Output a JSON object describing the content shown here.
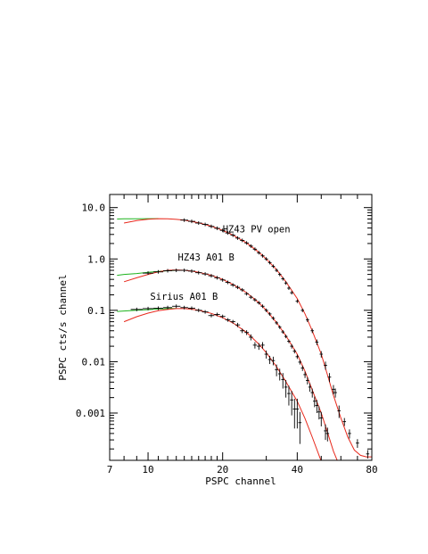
{
  "chart_data": {
    "type": "line",
    "xlabel": "PSPC channel",
    "ylabel": "PSPC cts/s channel",
    "x_scale": "log",
    "y_scale": "log",
    "xlim": [
      7,
      80
    ],
    "ylim": [
      0.00012,
      18
    ],
    "grid": false,
    "x_tick_labels": [
      "7",
      "10",
      "20",
      "40",
      "80"
    ],
    "y_tick_labels": [
      "10.0",
      "1.0",
      "0.1",
      "0.01",
      "0.001"
    ],
    "colors": {
      "data": "#000000",
      "model_red": "#e8291c",
      "model_green": "#1db31d",
      "frame": "#000000"
    },
    "series": [
      {
        "name": "HZ43 PV open",
        "label_at": [
          20,
          3.3
        ],
        "model_red": {
          "x": [
            8,
            9,
            10,
            11,
            12,
            13,
            14,
            16,
            18,
            20,
            22,
            25,
            28,
            30,
            33,
            36,
            40,
            43,
            46,
            50,
            53,
            56,
            60,
            64,
            68,
            72,
            76,
            80
          ],
          "y": [
            5.0,
            5.6,
            5.95,
            6.1,
            6.05,
            5.9,
            5.7,
            5.05,
            4.35,
            3.6,
            2.9,
            2.05,
            1.35,
            1.0,
            0.62,
            0.36,
            0.17,
            0.085,
            0.04,
            0.014,
            0.0055,
            0.0022,
            0.0008,
            0.00034,
            0.00019,
            0.00015,
            0.00014,
            0.00014
          ]
        },
        "model_green": {
          "x": [
            7.5,
            8,
            9,
            10,
            11
          ],
          "y": [
            6.0,
            6.05,
            6.05,
            6.1,
            6.1
          ]
        },
        "data": [
          {
            "x": 14,
            "y": 5.7,
            "err": 0.1
          },
          {
            "x": 15,
            "y": 5.4,
            "err": 0.1
          },
          {
            "x": 16,
            "y": 5.0,
            "err": 0.1
          },
          {
            "x": 17,
            "y": 4.7,
            "err": 0.1
          },
          {
            "x": 18,
            "y": 4.3,
            "err": 0.1
          },
          {
            "x": 19,
            "y": 3.95,
            "err": 0.08
          },
          {
            "x": 20,
            "y": 3.6,
            "err": 0.08
          },
          {
            "x": 21,
            "y": 3.2,
            "err": 0.07
          },
          {
            "x": 22,
            "y": 2.9,
            "err": 0.07
          },
          {
            "x": 23,
            "y": 2.55,
            "err": 0.06
          },
          {
            "x": 24,
            "y": 2.3,
            "err": 0.06
          },
          {
            "x": 25,
            "y": 2.05,
            "err": 0.05
          },
          {
            "x": 26,
            "y": 1.78,
            "err": 0.05
          },
          {
            "x": 27,
            "y": 1.55,
            "err": 0.04
          },
          {
            "x": 28,
            "y": 1.32,
            "err": 0.04
          },
          {
            "x": 29,
            "y": 1.15,
            "err": 0.04
          },
          {
            "x": 30,
            "y": 1.0,
            "err": 0.03
          },
          {
            "x": 31,
            "y": 0.85,
            "err": 0.03
          },
          {
            "x": 32,
            "y": 0.72,
            "err": 0.03
          },
          {
            "x": 33,
            "y": 0.6,
            "err": 0.025
          },
          {
            "x": 34,
            "y": 0.5,
            "err": 0.02
          },
          {
            "x": 35,
            "y": 0.41,
            "err": 0.02
          },
          {
            "x": 36,
            "y": 0.34,
            "err": 0.02
          },
          {
            "x": 37,
            "y": 0.27,
            "err": 0.015
          },
          {
            "x": 38,
            "y": 0.22,
            "err": 0.012
          },
          {
            "x": 40,
            "y": 0.15,
            "err": 0.01
          },
          {
            "x": 42,
            "y": 0.1,
            "err": 0.008
          },
          {
            "x": 44,
            "y": 0.065,
            "err": 0.006
          },
          {
            "x": 46,
            "y": 0.04,
            "err": 0.004
          },
          {
            "x": 48,
            "y": 0.024,
            "err": 0.003
          },
          {
            "x": 50,
            "y": 0.014,
            "err": 0.002
          },
          {
            "x": 52,
            "y": 0.0085,
            "err": 0.0015
          },
          {
            "x": 54,
            "y": 0.005,
            "err": 0.001
          },
          {
            "x": 56,
            "y": 0.0029,
            "err": 0.0006
          },
          {
            "x": 57,
            "y": 0.0025,
            "err": 0.0005
          },
          {
            "x": 59,
            "y": 0.0011,
            "err": 0.0003
          },
          {
            "x": 62,
            "y": 0.00068,
            "err": 0.00012
          },
          {
            "x": 65,
            "y": 0.0004,
            "err": 8e-05
          },
          {
            "x": 70,
            "y": 0.00026,
            "err": 5e-05
          },
          {
            "x": 77,
            "y": 0.00016,
            "err": 3e-05
          }
        ]
      },
      {
        "name": "HZ43 A01 B",
        "label_at": [
          13.2,
          0.93
        ],
        "model_red": {
          "x": [
            8,
            9,
            10,
            11,
            12,
            13,
            14,
            15,
            16,
            18,
            20,
            22,
            25,
            28,
            30,
            33,
            36,
            40,
            43,
            46,
            50,
            53,
            56,
            60
          ],
          "y": [
            0.36,
            0.43,
            0.5,
            0.56,
            0.6,
            0.61,
            0.6,
            0.58,
            0.55,
            0.48,
            0.4,
            0.32,
            0.22,
            0.14,
            0.1,
            0.058,
            0.032,
            0.014,
            0.0065,
            0.0028,
            0.001,
            0.00042,
            0.00018,
            8e-05
          ]
        },
        "model_green": {
          "x": [
            7.5,
            8,
            9,
            10,
            11,
            12,
            13,
            14
          ],
          "y": [
            0.48,
            0.5,
            0.52,
            0.55,
            0.57,
            0.59,
            0.6,
            0.6
          ]
        },
        "data": [
          {
            "x": 10,
            "y": 0.53,
            "err": 0.02
          },
          {
            "x": 11,
            "y": 0.56,
            "err": 0.02
          },
          {
            "x": 12,
            "y": 0.59,
            "err": 0.02
          },
          {
            "x": 13,
            "y": 0.6,
            "err": 0.02
          },
          {
            "x": 14,
            "y": 0.6,
            "err": 0.02
          },
          {
            "x": 15,
            "y": 0.58,
            "err": 0.02
          },
          {
            "x": 16,
            "y": 0.54,
            "err": 0.02
          },
          {
            "x": 17,
            "y": 0.51,
            "err": 0.02
          },
          {
            "x": 18,
            "y": 0.47,
            "err": 0.02
          },
          {
            "x": 19,
            "y": 0.43,
            "err": 0.015
          },
          {
            "x": 20,
            "y": 0.39,
            "err": 0.015
          },
          {
            "x": 21,
            "y": 0.35,
            "err": 0.013
          },
          {
            "x": 22,
            "y": 0.31,
            "err": 0.012
          },
          {
            "x": 23,
            "y": 0.28,
            "err": 0.011
          },
          {
            "x": 24,
            "y": 0.25,
            "err": 0.01
          },
          {
            "x": 25,
            "y": 0.21,
            "err": 0.009
          },
          {
            "x": 26,
            "y": 0.18,
            "err": 0.008
          },
          {
            "x": 27,
            "y": 0.16,
            "err": 0.007
          },
          {
            "x": 28,
            "y": 0.14,
            "err": 0.006
          },
          {
            "x": 29,
            "y": 0.12,
            "err": 0.005
          },
          {
            "x": 30,
            "y": 0.1,
            "err": 0.005
          },
          {
            "x": 31,
            "y": 0.085,
            "err": 0.004
          },
          {
            "x": 32,
            "y": 0.07,
            "err": 0.004
          },
          {
            "x": 33,
            "y": 0.057,
            "err": 0.003
          },
          {
            "x": 34,
            "y": 0.047,
            "err": 0.003
          },
          {
            "x": 35,
            "y": 0.038,
            "err": 0.003
          },
          {
            "x": 36,
            "y": 0.031,
            "err": 0.002
          },
          {
            "x": 37,
            "y": 0.025,
            "err": 0.002
          },
          {
            "x": 38,
            "y": 0.02,
            "err": 0.002
          },
          {
            "x": 39,
            "y": 0.016,
            "err": 0.0015
          },
          {
            "x": 40,
            "y": 0.0125,
            "err": 0.0012
          },
          {
            "x": 41,
            "y": 0.0098,
            "err": 0.001
          },
          {
            "x": 42,
            "y": 0.0075,
            "err": 0.0009
          },
          {
            "x": 43,
            "y": 0.0056,
            "err": 0.0008
          },
          {
            "x": 44,
            "y": 0.0043,
            "err": 0.0007
          },
          {
            "x": 45,
            "y": 0.0032,
            "err": 0.0006
          },
          {
            "x": 46,
            "y": 0.0025,
            "err": 0.0005
          },
          {
            "x": 47,
            "y": 0.0017,
            "err": 0.0004
          },
          {
            "x": 48,
            "y": 0.0014,
            "err": 0.0004
          },
          {
            "x": 49,
            "y": 0.00105,
            "err": 0.0003
          },
          {
            "x": 50,
            "y": 0.0008,
            "err": 0.00025
          },
          {
            "x": 52,
            "y": 0.00045,
            "err": 0.00015
          },
          {
            "x": 53,
            "y": 0.0004,
            "err": 0.00012
          }
        ]
      },
      {
        "name": "Sirius A01 B",
        "label_at": [
          10.2,
          0.16
        ],
        "model_red": {
          "x": [
            8,
            9,
            10,
            11,
            12,
            13,
            14,
            15,
            16,
            18,
            20,
            22,
            25,
            28,
            30,
            33,
            36,
            40,
            43,
            46,
            49,
            52
          ],
          "y": [
            0.06,
            0.075,
            0.088,
            0.098,
            0.104,
            0.108,
            0.108,
            0.105,
            0.1,
            0.087,
            0.072,
            0.057,
            0.037,
            0.022,
            0.015,
            0.008,
            0.0041,
            0.0017,
            0.00078,
            0.00034,
            0.00015,
            7e-05
          ]
        },
        "model_green": {
          "x": [
            7.5,
            8,
            9,
            10,
            11,
            12,
            13
          ],
          "y": [
            0.095,
            0.097,
            0.1,
            0.103,
            0.106,
            0.108,
            0.109
          ]
        },
        "data": [
          {
            "x": 9,
            "y": 0.104,
            "err": 0.006
          },
          {
            "x": 10,
            "y": 0.108,
            "err": 0.006
          },
          {
            "x": 11,
            "y": 0.11,
            "err": 0.006
          },
          {
            "x": 12,
            "y": 0.113,
            "err": 0.006
          },
          {
            "x": 13,
            "y": 0.12,
            "err": 0.007
          },
          {
            "x": 14,
            "y": 0.113,
            "err": 0.006
          },
          {
            "x": 15,
            "y": 0.11,
            "err": 0.006
          },
          {
            "x": 16,
            "y": 0.1,
            "err": 0.006
          },
          {
            "x": 17,
            "y": 0.093,
            "err": 0.006
          },
          {
            "x": 18,
            "y": 0.079,
            "err": 0.006
          },
          {
            "x": 19,
            "y": 0.083,
            "err": 0.006
          },
          {
            "x": 20,
            "y": 0.076,
            "err": 0.005
          },
          {
            "x": 21,
            "y": 0.065,
            "err": 0.005
          },
          {
            "x": 22,
            "y": 0.06,
            "err": 0.005
          },
          {
            "x": 23,
            "y": 0.052,
            "err": 0.005
          },
          {
            "x": 24,
            "y": 0.04,
            "err": 0.004
          },
          {
            "x": 25,
            "y": 0.037,
            "err": 0.004
          },
          {
            "x": 26,
            "y": 0.03,
            "err": 0.004
          },
          {
            "x": 27,
            "y": 0.021,
            "err": 0.003
          },
          {
            "x": 28,
            "y": 0.02,
            "err": 0.003
          },
          {
            "x": 29,
            "y": 0.021,
            "err": 0.003
          },
          {
            "x": 30,
            "y": 0.014,
            "err": 0.0025
          },
          {
            "x": 31,
            "y": 0.011,
            "err": 0.002
          },
          {
            "x": 32,
            "y": 0.0105,
            "err": 0.002
          },
          {
            "x": 33,
            "y": 0.007,
            "err": 0.0018
          },
          {
            "x": 34,
            "y": 0.0058,
            "err": 0.0015
          },
          {
            "x": 35,
            "y": 0.0045,
            "err": 0.0015
          },
          {
            "x": 36,
            "y": 0.0032,
            "err": 0.0012
          },
          {
            "x": 37,
            "y": 0.0024,
            "err": 0.001
          },
          {
            "x": 38,
            "y": 0.0018,
            "err": 0.0009
          },
          {
            "x": 39,
            "y": 0.0012,
            "err": 0.0007
          },
          {
            "x": 40,
            "y": 0.0012,
            "err": 0.0007
          },
          {
            "x": 41,
            "y": 0.00065,
            "err": 0.0004
          }
        ]
      }
    ]
  }
}
